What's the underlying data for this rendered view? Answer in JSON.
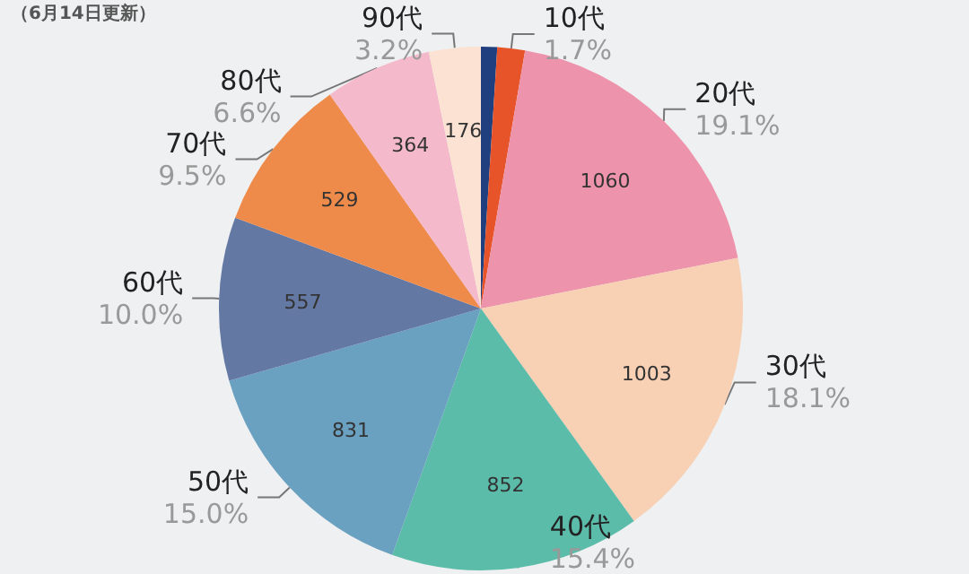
{
  "chart_data": {
    "type": "pie",
    "subtitle": "（6月14日更新）",
    "categories": [
      null,
      "10代",
      "20代",
      "30代",
      "40代",
      "50代",
      "60代",
      "70代",
      "80代",
      "90代"
    ],
    "values": [
      55,
      94,
      1060,
      1003,
      852,
      831,
      557,
      529,
      364,
      176
    ],
    "value_labels": [
      null,
      null,
      "1060",
      "1003",
      "852",
      "831",
      "557",
      "529",
      "364",
      "176"
    ],
    "colors": [
      "#1f3f7f",
      "#e8542a",
      "#ee93ac",
      "#f8d0b4",
      "#5cbcaa",
      "#6aa0c0",
      "#6478a4",
      "#ef8b4a",
      "#f4b9cb",
      "#fbe2d2"
    ],
    "annotations": [
      "1.7%",
      "19.1%",
      "18.1%",
      "15.4%",
      "15.0%",
      "10.0%",
      "9.5%",
      "6.6%",
      "3.2%"
    ],
    "legend": false
  }
}
